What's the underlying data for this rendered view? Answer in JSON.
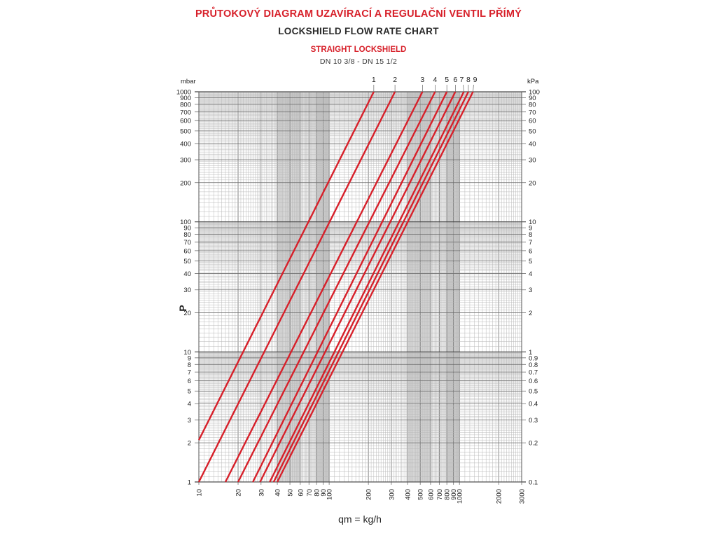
{
  "header": {
    "title_cz": "PRŮTOKOVÝ DIAGRAM UZAVÍRACÍ A REGULAČNÍ VENTIL PŘÍMÝ",
    "title_en": "LOCKSHIELD FLOW RATE CHART",
    "subtitle": "STRAIGHT LOCKSHIELD",
    "subtitle2": "DN 10 3/8 - DN 15 1/2"
  },
  "colors": {
    "curve": "#d7202a",
    "grid_minor": "#b8b8b8",
    "grid_major": "#6e6e6e",
    "band": "#d9d9d9"
  },
  "chart_data": {
    "type": "line",
    "x_scale": "log",
    "y_scale": "log",
    "xlabel": "qm = kg/h",
    "ylabel": "P",
    "y_unit_left": "mbar",
    "y_unit_right": "kPa",
    "xlim": [
      10,
      3000
    ],
    "ylim": [
      1,
      1000
    ],
    "x_ticks": [
      10,
      20,
      30,
      40,
      50,
      60,
      70,
      80,
      90,
      100,
      200,
      300,
      400,
      500,
      600,
      700,
      800,
      900,
      1000,
      2000,
      3000
    ],
    "x_tick_labels": [
      "10",
      "20",
      "30",
      "40",
      "50",
      "60",
      "70",
      "80",
      "90",
      "100",
      "200",
      "300",
      "400",
      "500",
      "600",
      "700",
      "800",
      "900",
      "1000",
      "2000",
      "3000"
    ],
    "y_ticks_left": [
      1,
      2,
      3,
      4,
      5,
      6,
      7,
      8,
      9,
      10,
      20,
      30,
      40,
      50,
      60,
      70,
      80,
      90,
      100,
      200,
      300,
      400,
      500,
      600,
      700,
      800,
      900,
      1000
    ],
    "y_tick_labels_left": [
      "1",
      "2",
      "3",
      "4",
      "5",
      "6",
      "7",
      "8",
      "9",
      "10",
      "20",
      "30",
      "40",
      "50",
      "60",
      "70",
      "80",
      "90",
      "100",
      "200",
      "300",
      "400",
      "500",
      "600",
      "700",
      "800",
      "900",
      "1000"
    ],
    "y_tick_labels_right": [
      "0.1",
      "0.2",
      "0.3",
      "0.4",
      "0.5",
      "0.6",
      "0.7",
      "0.8",
      "0.9",
      "1",
      "2",
      "3",
      "4",
      "5",
      "6",
      "7",
      "8",
      "9",
      "10",
      "20",
      "30",
      "40",
      "50",
      "60",
      "70",
      "80",
      "90",
      "100"
    ],
    "grid": true,
    "series": [
      {
        "name": "1",
        "points": [
          [
            10,
            2.1
          ],
          [
            220,
            1000
          ]
        ]
      },
      {
        "name": "2",
        "points": [
          [
            10,
            1
          ],
          [
            320,
            1000
          ]
        ]
      },
      {
        "name": "3",
        "points": [
          [
            16,
            1
          ],
          [
            520,
            1000
          ]
        ]
      },
      {
        "name": "4",
        "points": [
          [
            20,
            1
          ],
          [
            650,
            1000
          ]
        ]
      },
      {
        "name": "5",
        "points": [
          [
            26,
            1
          ],
          [
            800,
            1000
          ]
        ]
      },
      {
        "name": "6",
        "points": [
          [
            29.5,
            1
          ],
          [
            930,
            1000
          ]
        ]
      },
      {
        "name": "7",
        "points": [
          [
            35,
            1
          ],
          [
            1080,
            1000
          ]
        ]
      },
      {
        "name": "8",
        "points": [
          [
            37.5,
            1
          ],
          [
            1170,
            1000
          ]
        ]
      },
      {
        "name": "9",
        "points": [
          [
            40,
            1
          ],
          [
            1270,
            1000
          ]
        ]
      }
    ]
  }
}
